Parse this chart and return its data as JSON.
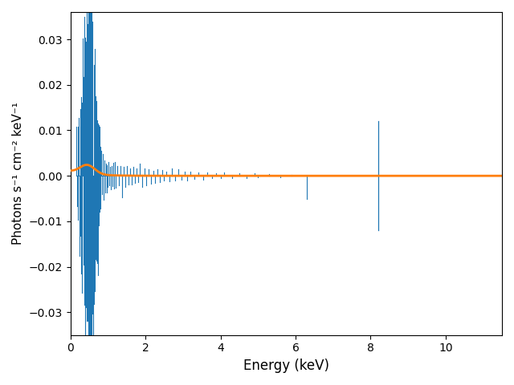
{
  "xlabel": "Energy (keV)",
  "ylabel": "Photons s⁻¹ cm⁻² keV⁻¹",
  "xlim": [
    0,
    11.5
  ],
  "ylim": [
    -0.035,
    0.036
  ],
  "bg_color": "white",
  "line_color_blue": "#1f77b4",
  "line_color_orange": "#ff7f0e",
  "figsize": [
    6.4,
    4.8
  ],
  "dpi": 100
}
